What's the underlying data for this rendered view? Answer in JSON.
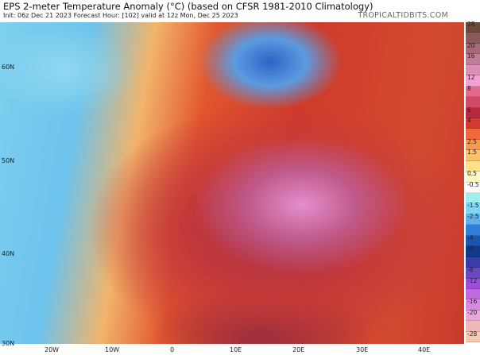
{
  "header": {
    "title": "EPS 2-meter Temperature Anomaly (°C) (based on CFSR 1981-2010 Climatology)",
    "subtitle": "Init: 06z Dec 21 2023   Forecast Hour: [102]   valid at 12z Mon, Dec 25 2023",
    "brand": "TROPICALTIDBITS.COM"
  },
  "map": {
    "lat_labels": [
      "60N",
      "50N",
      "40N",
      "30N"
    ],
    "lon_labels": [
      "20W",
      "10W",
      "0",
      "10E",
      "20E",
      "30E",
      "40E"
    ]
  },
  "colorbar": {
    "labels": [
      "28",
      "20",
      "16",
      "12",
      "8",
      "6",
      "4",
      "2.5",
      "1.5",
      "0.5",
      "-0.5",
      "-1.5",
      "-2.5",
      "-4",
      "-6",
      "-8",
      "-12",
      "-16",
      "-20",
      "-28"
    ],
    "colors": [
      "#6b4a3a",
      "#8a5a5a",
      "#a56a78",
      "#c07d98",
      "#d98fb8",
      "#f59fd2",
      "#e36a8a",
      "#cf4a64",
      "#b8283e",
      "#d23a30",
      "#ee6a3a",
      "#f79a4e",
      "#fbc06a",
      "#fce08a",
      "#fdf6c4",
      "#ffffff",
      "#9ef0ee",
      "#7fd6f2",
      "#5db2ee",
      "#2f7fd8",
      "#1a56b0",
      "#0e3a88",
      "#3a3ca8",
      "#6a48c0",
      "#9a50d8",
      "#c06ae2",
      "#d88ae0",
      "#e8a8d8",
      "#f0b8b8",
      "#f8cab0"
    ]
  }
}
